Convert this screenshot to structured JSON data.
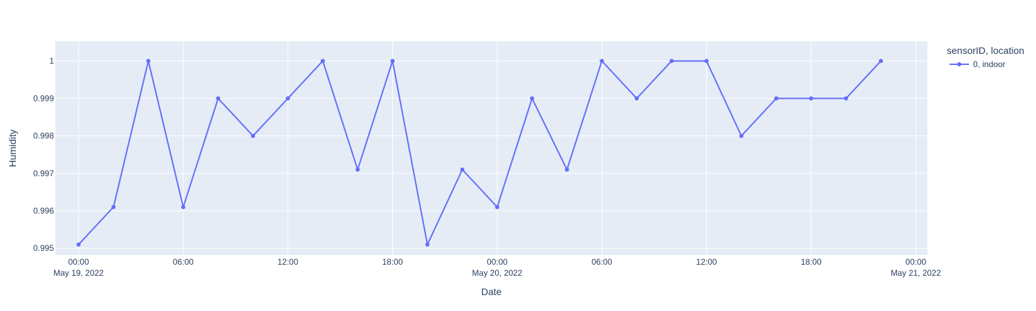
{
  "chart_data": {
    "type": "line",
    "xlabel": "Date",
    "ylabel": "Humidity",
    "xlim": [
      "2022-05-18T22:40:00",
      "2022-05-21T00:40:00"
    ],
    "ylim": [
      0.99482,
      1.00052
    ],
    "x_ticks": [
      {
        "value": "2022-05-19T00:00:00",
        "label": "00:00",
        "sublabel": "May 19, 2022"
      },
      {
        "value": "2022-05-19T06:00:00",
        "label": "06:00",
        "sublabel": ""
      },
      {
        "value": "2022-05-19T12:00:00",
        "label": "12:00",
        "sublabel": ""
      },
      {
        "value": "2022-05-19T18:00:00",
        "label": "18:00",
        "sublabel": ""
      },
      {
        "value": "2022-05-20T00:00:00",
        "label": "00:00",
        "sublabel": "May 20, 2022"
      },
      {
        "value": "2022-05-20T06:00:00",
        "label": "06:00",
        "sublabel": ""
      },
      {
        "value": "2022-05-20T12:00:00",
        "label": "12:00",
        "sublabel": ""
      },
      {
        "value": "2022-05-20T18:00:00",
        "label": "18:00",
        "sublabel": ""
      },
      {
        "value": "2022-05-21T00:00:00",
        "label": "00:00",
        "sublabel": "May 21, 2022"
      }
    ],
    "y_ticks": [
      {
        "value": 0.995,
        "label": "0.995"
      },
      {
        "value": 0.996,
        "label": "0.996"
      },
      {
        "value": 0.997,
        "label": "0.997"
      },
      {
        "value": 0.998,
        "label": "0.998"
      },
      {
        "value": 0.999,
        "label": "0.999"
      },
      {
        "value": 1.0,
        "label": "1"
      }
    ],
    "grid": true,
    "legend": {
      "title": "sensorID, location",
      "placement": "right"
    },
    "series": [
      {
        "name": "0, indoor",
        "color": "#636efa",
        "points": [
          {
            "x": "2022-05-19T00:00:00",
            "y": 0.9951
          },
          {
            "x": "2022-05-19T02:00:00",
            "y": 0.9961
          },
          {
            "x": "2022-05-19T04:00:00",
            "y": 1.0
          },
          {
            "x": "2022-05-19T06:00:00",
            "y": 0.9961
          },
          {
            "x": "2022-05-19T08:00:00",
            "y": 0.999
          },
          {
            "x": "2022-05-19T10:00:00",
            "y": 0.998
          },
          {
            "x": "2022-05-19T12:00:00",
            "y": 0.999
          },
          {
            "x": "2022-05-19T14:00:00",
            "y": 1.0
          },
          {
            "x": "2022-05-19T16:00:00",
            "y": 0.9971
          },
          {
            "x": "2022-05-19T18:00:00",
            "y": 1.0
          },
          {
            "x": "2022-05-19T20:00:00",
            "y": 0.9951
          },
          {
            "x": "2022-05-19T22:00:00",
            "y": 0.9971
          },
          {
            "x": "2022-05-20T00:00:00",
            "y": 0.9961
          },
          {
            "x": "2022-05-20T02:00:00",
            "y": 0.999
          },
          {
            "x": "2022-05-20T04:00:00",
            "y": 0.9971
          },
          {
            "x": "2022-05-20T06:00:00",
            "y": 1.0
          },
          {
            "x": "2022-05-20T08:00:00",
            "y": 0.999
          },
          {
            "x": "2022-05-20T10:00:00",
            "y": 1.0
          },
          {
            "x": "2022-05-20T12:00:00",
            "y": 1.0
          },
          {
            "x": "2022-05-20T14:00:00",
            "y": 0.998
          },
          {
            "x": "2022-05-20T16:00:00",
            "y": 0.999
          },
          {
            "x": "2022-05-20T18:00:00",
            "y": 0.999
          },
          {
            "x": "2022-05-20T20:00:00",
            "y": 0.999
          },
          {
            "x": "2022-05-20T22:00:00",
            "y": 1.0
          }
        ]
      }
    ],
    "plot_background": "#e5ecf6",
    "grid_color": "#ffffff",
    "text_color": "#2a3f5f"
  }
}
